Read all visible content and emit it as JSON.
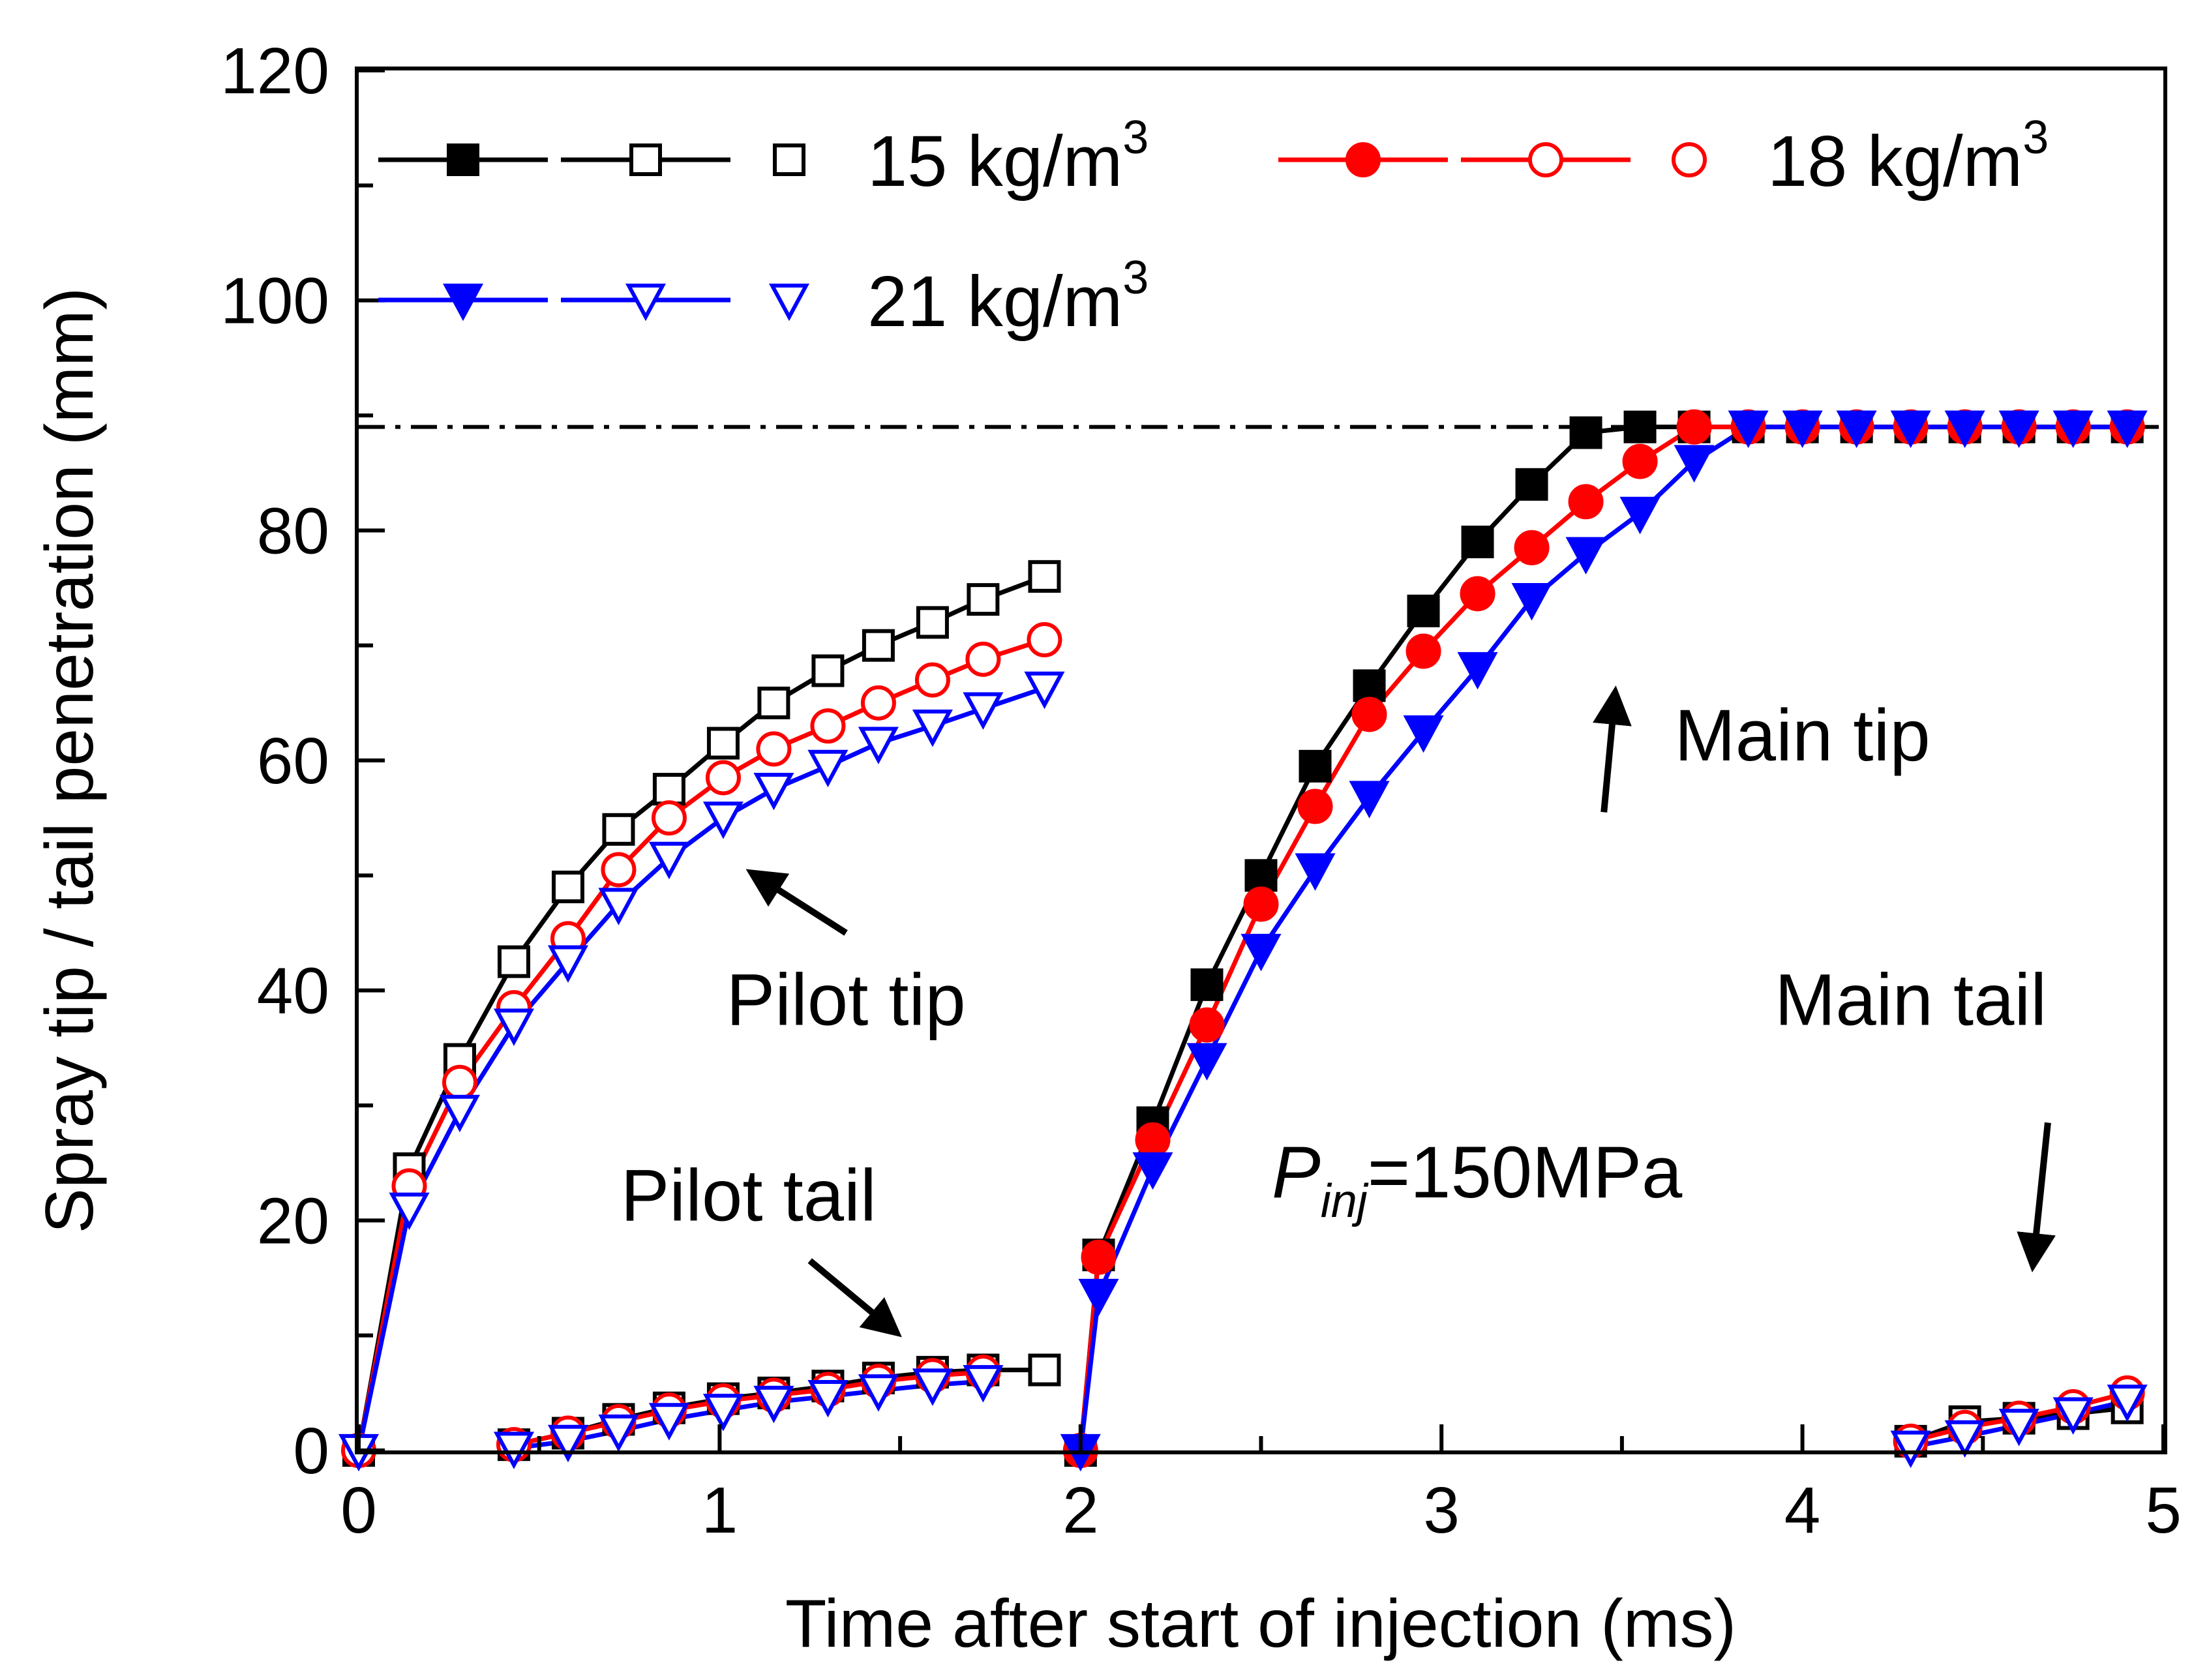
{
  "chart_data": {
    "type": "line",
    "title": "",
    "xlabel": "Time after start of injection (ms)",
    "ylabel": "Spray tip / tail penetration (mm)",
    "xlim": [
      0,
      5
    ],
    "ylim": [
      0,
      120
    ],
    "xticks": [
      "0",
      "1",
      "2",
      "3",
      "4",
      "5"
    ],
    "yticks": [
      "0",
      "20",
      "40",
      "60",
      "80",
      "100",
      "120"
    ],
    "grid": false,
    "reference_line": {
      "y": 89,
      "style": "dash-dot",
      "color": "#000000"
    },
    "legend_placement": "top",
    "legend": [
      {
        "label": "15 kg/m",
        "sup": "3",
        "color": "#000000",
        "filled": "square-filled",
        "open": "square-open"
      },
      {
        "label": "18 kg/m",
        "sup": "3",
        "color": "#ff0000",
        "filled": "circle-filled",
        "open": "circle-open"
      },
      {
        "label": "21 kg/m",
        "sup": "3",
        "color": "#0000ff",
        "filled": "triangle-filled",
        "open": "triangle-open"
      }
    ],
    "series": [
      {
        "name": "15 kg/m3 pilot tip",
        "color": "#000000",
        "marker": "square-open",
        "points": [
          [
            0.0,
            0
          ],
          [
            0.14,
            24.5
          ],
          [
            0.28,
            34
          ],
          [
            0.43,
            42.5
          ],
          [
            0.58,
            49
          ],
          [
            0.72,
            54
          ],
          [
            0.86,
            57.5
          ],
          [
            1.01,
            61.5
          ],
          [
            1.15,
            65
          ],
          [
            1.3,
            67.8
          ],
          [
            1.44,
            70
          ],
          [
            1.59,
            72
          ],
          [
            1.73,
            74
          ],
          [
            1.9,
            76
          ]
        ]
      },
      {
        "name": "18 kg/m3 pilot tip",
        "color": "#ff0000",
        "marker": "circle-open",
        "points": [
          [
            0.0,
            0
          ],
          [
            0.14,
            23
          ],
          [
            0.28,
            32
          ],
          [
            0.43,
            38.5
          ],
          [
            0.58,
            44.5
          ],
          [
            0.72,
            50.5
          ],
          [
            0.86,
            55
          ],
          [
            1.01,
            58.5
          ],
          [
            1.15,
            61
          ],
          [
            1.3,
            63
          ],
          [
            1.44,
            65
          ],
          [
            1.59,
            67
          ],
          [
            1.73,
            68.8
          ],
          [
            1.9,
            70.5
          ]
        ]
      },
      {
        "name": "21 kg/m3 pilot tip",
        "color": "#0000ff",
        "marker": "triangle-open",
        "points": [
          [
            0.0,
            0
          ],
          [
            0.14,
            21
          ],
          [
            0.28,
            29.5
          ],
          [
            0.43,
            37
          ],
          [
            0.58,
            42.5
          ],
          [
            0.72,
            47.5
          ],
          [
            0.86,
            51.5
          ],
          [
            1.01,
            55
          ],
          [
            1.15,
            57.5
          ],
          [
            1.3,
            59.5
          ],
          [
            1.44,
            61.5
          ],
          [
            1.59,
            63
          ],
          [
            1.73,
            64.5
          ],
          [
            1.9,
            66.3
          ]
        ]
      },
      {
        "name": "15 kg/m3 pilot tail",
        "color": "#000000",
        "marker": "square-open",
        "points": [
          [
            0.43,
            0.5
          ],
          [
            0.58,
            1.5
          ],
          [
            0.72,
            2.7
          ],
          [
            0.86,
            3.7
          ],
          [
            1.01,
            4.5
          ],
          [
            1.15,
            5
          ],
          [
            1.3,
            5.6
          ],
          [
            1.44,
            6.3
          ],
          [
            1.59,
            6.8
          ],
          [
            1.73,
            7
          ],
          [
            1.9,
            7
          ]
        ]
      },
      {
        "name": "18 kg/m3 pilot tail",
        "color": "#ff0000",
        "marker": "circle-open",
        "points": [
          [
            0.43,
            0.5
          ],
          [
            0.58,
            1.5
          ],
          [
            0.72,
            2.5
          ],
          [
            0.86,
            3.5
          ],
          [
            1.01,
            4.3
          ],
          [
            1.15,
            4.8
          ],
          [
            1.3,
            5.3
          ],
          [
            1.44,
            6
          ],
          [
            1.59,
            6.5
          ],
          [
            1.73,
            6.8
          ]
        ]
      },
      {
        "name": "21 kg/m3 pilot tail",
        "color": "#0000ff",
        "marker": "triangle-open",
        "points": [
          [
            0.43,
            0.2
          ],
          [
            0.58,
            0.8
          ],
          [
            0.72,
            1.7
          ],
          [
            0.86,
            2.7
          ],
          [
            1.01,
            3.5
          ],
          [
            1.15,
            4.2
          ],
          [
            1.3,
            4.7
          ],
          [
            1.44,
            5.2
          ],
          [
            1.59,
            5.7
          ],
          [
            1.73,
            6
          ]
        ]
      },
      {
        "name": "15 kg/m3 main tip",
        "color": "#000000",
        "marker": "square-filled",
        "points": [
          [
            2.0,
            0
          ],
          [
            2.05,
            17
          ],
          [
            2.2,
            28.5
          ],
          [
            2.35,
            40.5
          ],
          [
            2.5,
            50
          ],
          [
            2.65,
            59.5
          ],
          [
            2.8,
            66.5
          ],
          [
            2.95,
            73
          ],
          [
            3.1,
            79
          ],
          [
            3.25,
            84
          ],
          [
            3.4,
            88.5
          ],
          [
            3.55,
            89
          ],
          [
            3.7,
            89
          ],
          [
            3.85,
            89
          ],
          [
            4.0,
            89
          ],
          [
            4.15,
            89
          ],
          [
            4.3,
            89
          ],
          [
            4.45,
            89
          ],
          [
            4.6,
            89
          ],
          [
            4.75,
            89
          ],
          [
            4.9,
            89
          ]
        ]
      },
      {
        "name": "18 kg/m3 main tip",
        "color": "#ff0000",
        "marker": "circle-filled",
        "points": [
          [
            2.0,
            0
          ],
          [
            2.05,
            16.8
          ],
          [
            2.2,
            27
          ],
          [
            2.35,
            37
          ],
          [
            2.5,
            47.5
          ],
          [
            2.65,
            56
          ],
          [
            2.8,
            64
          ],
          [
            2.95,
            69.5
          ],
          [
            3.1,
            74.5
          ],
          [
            3.25,
            78.5
          ],
          [
            3.4,
            82.5
          ],
          [
            3.55,
            86
          ],
          [
            3.7,
            89
          ],
          [
            3.85,
            89
          ],
          [
            4.0,
            89
          ],
          [
            4.15,
            89
          ],
          [
            4.3,
            89
          ],
          [
            4.45,
            89
          ],
          [
            4.6,
            89
          ],
          [
            4.75,
            89
          ],
          [
            4.9,
            89
          ]
        ]
      },
      {
        "name": "21 kg/m3 main tip",
        "color": "#0000ff",
        "marker": "triangle-filled",
        "points": [
          [
            2.0,
            0
          ],
          [
            2.05,
            13.5
          ],
          [
            2.2,
            24.5
          ],
          [
            2.35,
            34
          ],
          [
            2.5,
            43.5
          ],
          [
            2.65,
            50.5
          ],
          [
            2.8,
            56.8
          ],
          [
            2.95,
            62.5
          ],
          [
            3.1,
            68
          ],
          [
            3.25,
            74
          ],
          [
            3.4,
            78
          ],
          [
            3.55,
            81.5
          ],
          [
            3.7,
            86
          ],
          [
            3.85,
            89
          ],
          [
            4.0,
            89
          ],
          [
            4.15,
            89
          ],
          [
            4.3,
            89
          ],
          [
            4.45,
            89
          ],
          [
            4.6,
            89
          ],
          [
            4.75,
            89
          ],
          [
            4.9,
            89
          ]
        ]
      },
      {
        "name": "15 kg/m3 main tail",
        "color": "#000000",
        "marker": "square-open",
        "points": [
          [
            4.3,
            0.8
          ],
          [
            4.45,
            2.5
          ],
          [
            4.6,
            2.8
          ],
          [
            4.75,
            3.2
          ],
          [
            4.9,
            3.7
          ]
        ]
      },
      {
        "name": "18 kg/m3 main tail",
        "color": "#ff0000",
        "marker": "circle-open",
        "points": [
          [
            4.3,
            0.8
          ],
          [
            4.45,
            2
          ],
          [
            4.6,
            2.8
          ],
          [
            4.75,
            3.8
          ],
          [
            4.9,
            5
          ]
        ]
      },
      {
        "name": "21 kg/m3 main tail",
        "color": "#0000ff",
        "marker": "triangle-open",
        "points": [
          [
            4.3,
            0.3
          ],
          [
            4.45,
            1.2
          ],
          [
            4.6,
            2.2
          ],
          [
            4.75,
            3.2
          ],
          [
            4.9,
            4.3
          ]
        ]
      }
    ],
    "annotations": [
      {
        "text": "Pilot tip",
        "text_x": 1.35,
        "text_y": 37,
        "arrow_from": [
          1.35,
          45
        ],
        "arrow_to": [
          1.1,
          50
        ]
      },
      {
        "text": "Pilot tail",
        "text_x": 1.08,
        "text_y": 20,
        "arrow_from": [
          1.25,
          16.5
        ],
        "arrow_to": [
          1.48,
          10.5
        ]
      },
      {
        "text": "Main tip",
        "text_x": 4.0,
        "text_y": 60,
        "arrow_from": [
          3.45,
          55.5
        ],
        "arrow_to": [
          3.48,
          65.5
        ]
      },
      {
        "text": "Main tail",
        "text_x": 4.3,
        "text_y": 37,
        "arrow_from": [
          4.68,
          28.5
        ],
        "arrow_to": [
          4.64,
          16.5
        ]
      },
      {
        "text": "P",
        "subscript": "inj",
        "suffix": "=150MPa",
        "text_x": 3.2,
        "text_y": 22
      }
    ]
  }
}
